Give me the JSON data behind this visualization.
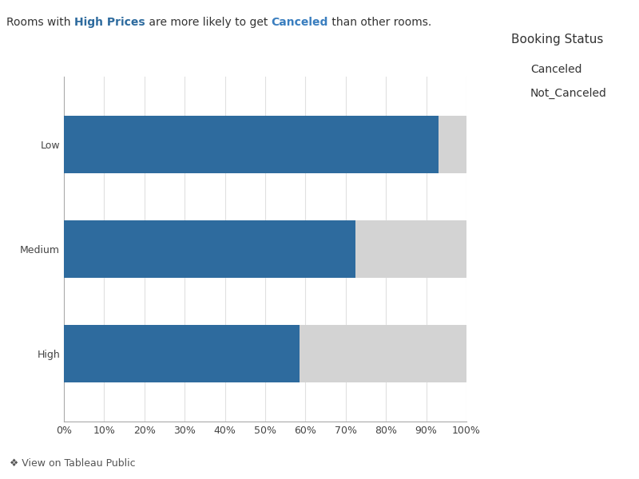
{
  "categories": [
    "High",
    "Medium",
    "Low"
  ],
  "not_canceled": [
    0.585,
    0.725,
    0.93
  ],
  "canceled": [
    0.415,
    0.275,
    0.07
  ],
  "color_not_canceled": "#2E6B9E",
  "color_canceled": "#D3D3D3",
  "legend_title": "Booking Status",
  "legend_labels": [
    "Canceled",
    "Not_Canceled"
  ],
  "bar_height": 0.55,
  "xlim": [
    0,
    1.0
  ],
  "xticks": [
    0.0,
    0.1,
    0.2,
    0.3,
    0.4,
    0.5,
    0.6,
    0.7,
    0.8,
    0.9,
    1.0
  ],
  "xtick_labels": [
    "0%",
    "10%",
    "20%",
    "30%",
    "40%",
    "50%",
    "60%",
    "70%",
    "80%",
    "90%",
    "100%"
  ],
  "background_color": "#FFFFFF",
  "footer_text": "❖ View on Tableau Public",
  "axis_color": "#AAAAAA",
  "font_size_ticks": 9,
  "font_size_legend": 10,
  "font_size_subtitle": 10,
  "subtitle_normal_color": "#333333",
  "subtitle_highlight_hp": "#2E6B9E",
  "subtitle_highlight_c": "#3A7EBF",
  "footer_bar_color": "#F0F0F0",
  "footer_bar_height": 0.065
}
